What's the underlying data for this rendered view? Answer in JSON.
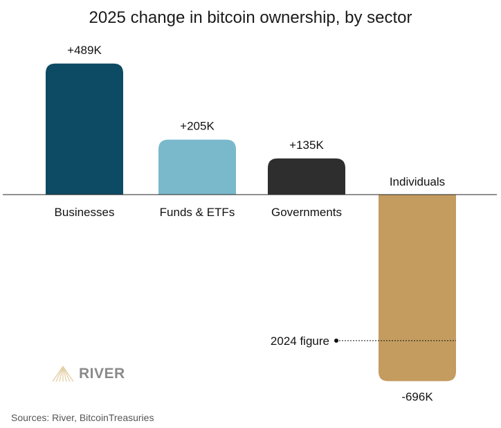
{
  "chart_data": {
    "type": "bar",
    "title": "2025 change in bitcoin ownership, by sector",
    "categories": [
      "Businesses",
      "Funds & ETFs",
      "Governments",
      "Individuals"
    ],
    "values": [
      489,
      205,
      135,
      -696
    ],
    "data_labels": [
      "+489K",
      "+205K",
      "+135K",
      "-696K"
    ],
    "unit": "K BTC",
    "colors": [
      "#0d4a63",
      "#7ab9cb",
      "#2e2e2e",
      "#c49c60"
    ],
    "reference": {
      "label": "2024 figure",
      "category": "Individuals",
      "value": -545
    },
    "grid": false,
    "legend": "none"
  },
  "source": "Sources: River, BitcoinTreasuries",
  "logo": {
    "text": "RIVER",
    "color": "#e8d5b0"
  }
}
